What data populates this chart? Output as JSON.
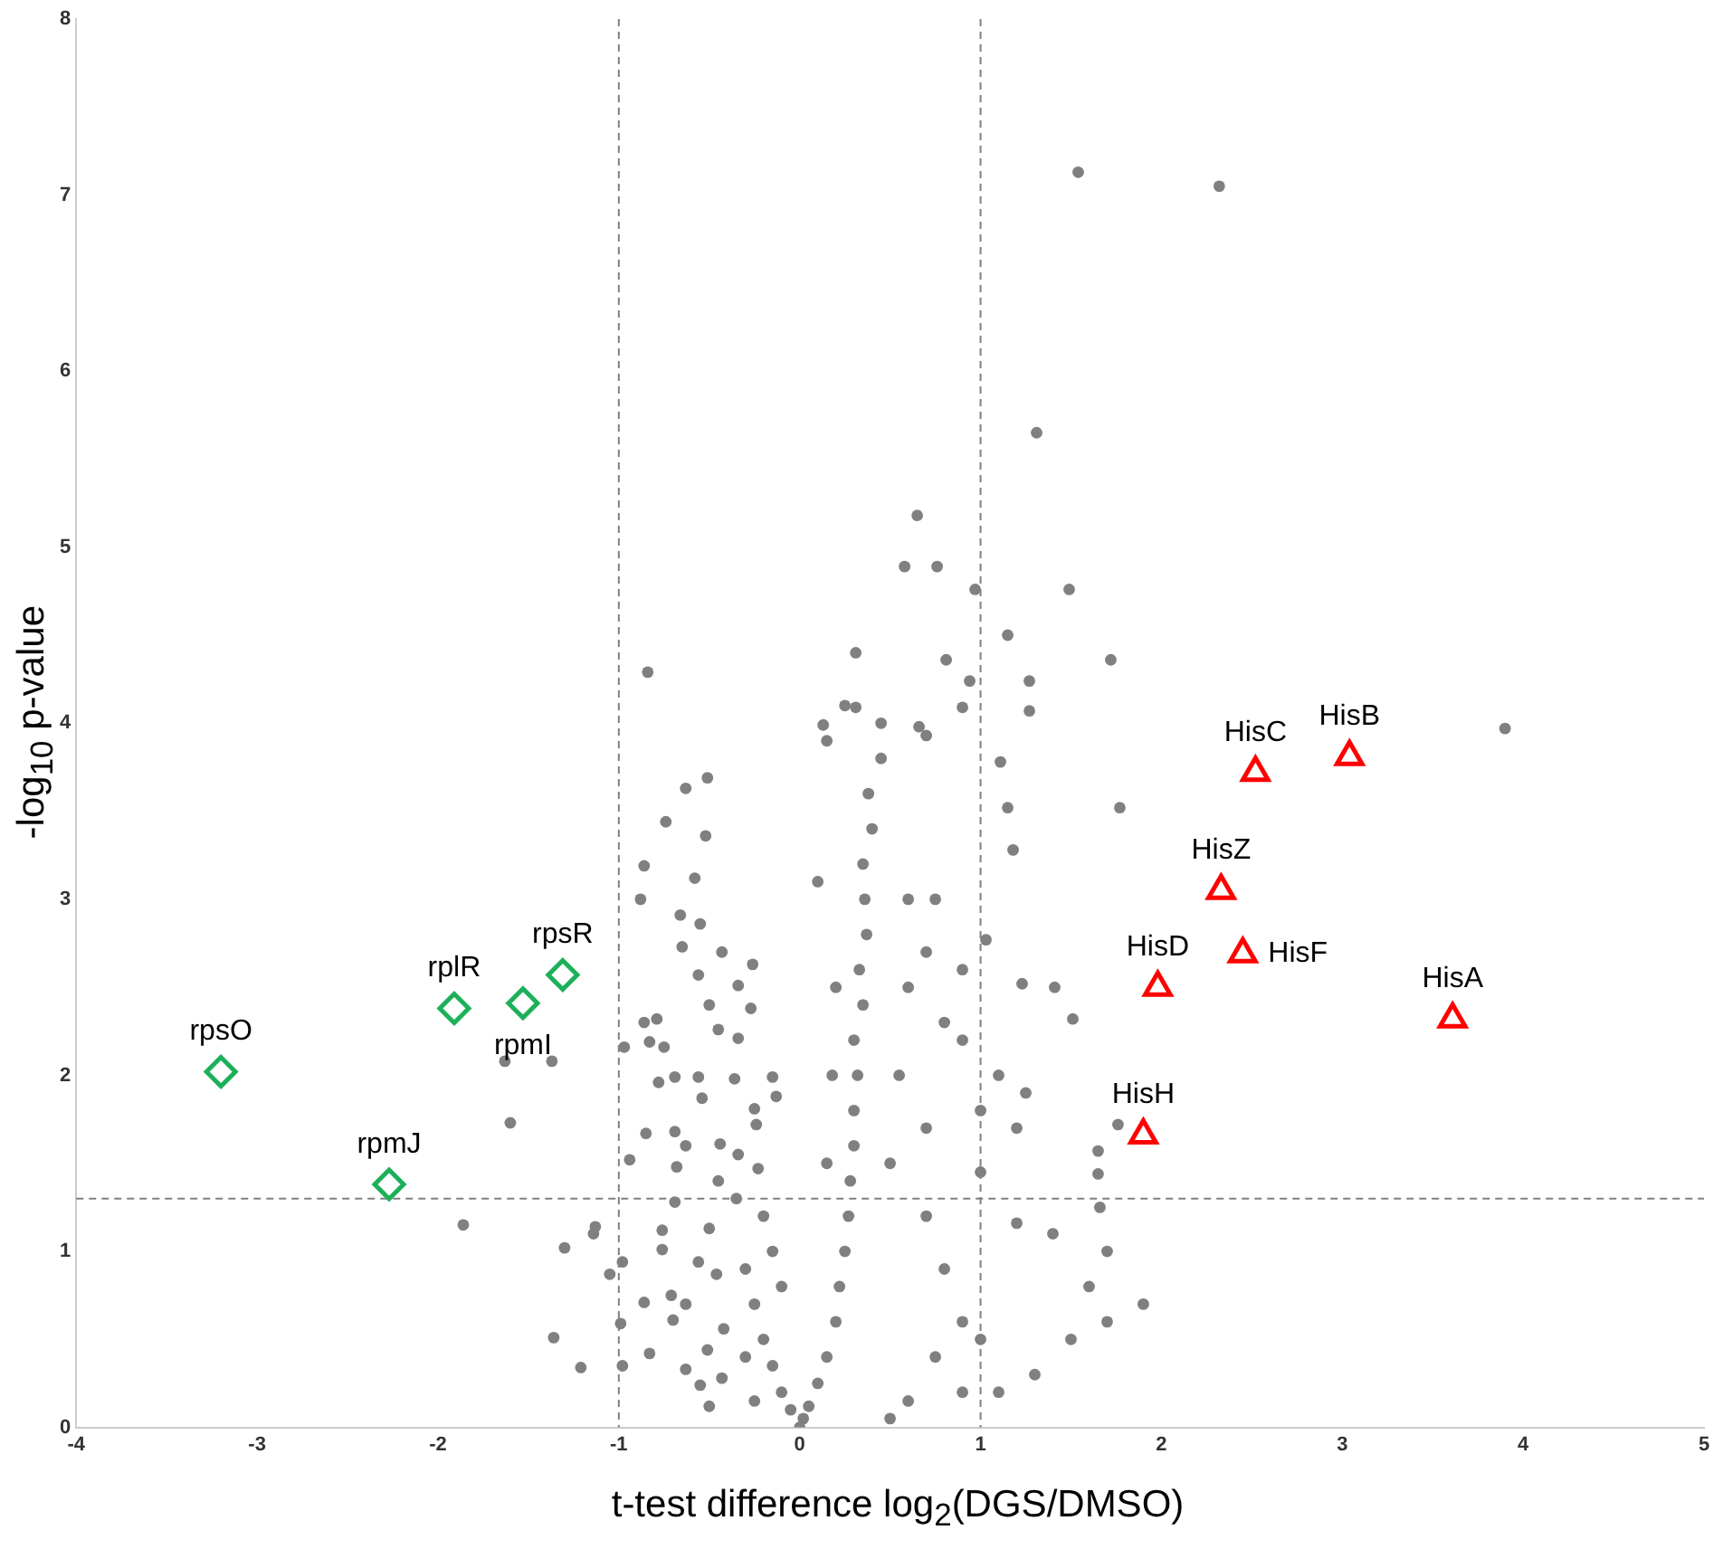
{
  "chart_data": {
    "type": "scatter",
    "xlabel": "t-test difference log$_{2}$(DGS/DMSO)",
    "ylabel": "-log$_{10}$ p-value",
    "xlim": [
      -4,
      5
    ],
    "ylim": [
      0,
      8
    ],
    "xticks": [
      -4,
      -3,
      -2,
      -1,
      0,
      1,
      2,
      3,
      4,
      5
    ],
    "yticks": [
      0,
      1,
      2,
      3,
      4,
      5,
      6,
      7,
      8
    ],
    "grid": false,
    "legend": false,
    "series": [
      {
        "color": "#808080",
        "marker": "circle",
        "x": [
          1.54,
          2.32,
          1.31,
          0.65,
          1.49,
          -0.84,
          0.58,
          0.76,
          0.97,
          0.31,
          1.15,
          0.81,
          1.72,
          1.27,
          0.94,
          1.27,
          0.9,
          0.31,
          0.13,
          0.66,
          0.7,
          1.11,
          1.77,
          3.9,
          1.15,
          1.18,
          1.03,
          1.23,
          1.41,
          1.51,
          1.25,
          1.76,
          1.65,
          1.65,
          1.2,
          -0.51,
          -0.63,
          -0.74,
          -0.52,
          -0.86,
          -0.88,
          -0.58,
          -0.66,
          -0.55,
          -0.65,
          -0.43,
          -0.26,
          -0.56,
          -0.34,
          -0.5,
          -0.27,
          -0.86,
          -0.79,
          -0.97,
          -0.83,
          -0.75,
          -0.45,
          -0.34,
          -1.63,
          -1.37,
          -1.6,
          -0.78,
          -0.69,
          -0.56,
          -0.36,
          -0.15,
          -0.13,
          -0.54,
          -0.25,
          -0.24,
          -0.85,
          -0.69,
          -0.63,
          -0.44,
          -0.34,
          -0.94,
          -0.68,
          -0.23,
          -0.45,
          -0.69,
          -1.86,
          -1.13,
          -1.14,
          -0.76,
          -0.5,
          -1.3,
          -0.76,
          -0.56,
          -0.98,
          -1.05,
          -0.46,
          -0.71,
          -0.63,
          -0.86,
          -0.99,
          -0.7,
          -0.42,
          -1.36,
          -0.83,
          -0.51,
          -1.21,
          -0.98,
          -0.63,
          -0.55,
          -0.43,
          -0.5,
          0,
          0.02,
          -0.05,
          0.05,
          -0.1,
          0.1,
          -0.15,
          0.15,
          -0.2,
          0.2,
          -0.25,
          0.22,
          0.25,
          0.27,
          0.28,
          0.3,
          0.3,
          0.32,
          0.3,
          0.35,
          0.33,
          0.37,
          0.36,
          0.35,
          0.4,
          0.38,
          0.45,
          0.15,
          0.18,
          0.2,
          0.1,
          0.5,
          0.55,
          0.6,
          0.6,
          0.7,
          0.8,
          0.9,
          0.75,
          1.0,
          0.9,
          0.6,
          0.5,
          1.4,
          1.6,
          1.7,
          1.9,
          1.5,
          1.3,
          1.1,
          1.7,
          1.66,
          1.0,
          1.2,
          1.1,
          0.9,
          1.0,
          0.7,
          0.8,
          0.7,
          0.75,
          0.9,
          0.45,
          0.25,
          0.15,
          -0.3,
          -0.2,
          -0.15,
          -0.35,
          -0.1,
          -0.25,
          -0.3
        ],
        "values": [
          7.13,
          7.05,
          5.65,
          5.18,
          4.76,
          4.29,
          4.89,
          4.89,
          4.76,
          4.4,
          4.5,
          4.36,
          4.36,
          4.24,
          4.24,
          4.07,
          4.09,
          4.09,
          3.99,
          3.98,
          3.93,
          3.78,
          3.52,
          3.97,
          3.52,
          3.28,
          2.77,
          2.52,
          2.5,
          2.32,
          1.9,
          1.72,
          1.57,
          1.44,
          1.16,
          3.69,
          3.63,
          3.44,
          3.36,
          3.19,
          3.0,
          3.12,
          2.91,
          2.86,
          2.73,
          2.7,
          2.63,
          2.57,
          2.51,
          2.4,
          2.38,
          2.3,
          2.32,
          2.16,
          2.19,
          2.16,
          2.26,
          2.21,
          2.08,
          2.08,
          1.73,
          1.96,
          1.99,
          1.99,
          1.98,
          1.99,
          1.88,
          1.87,
          1.81,
          1.72,
          1.67,
          1.68,
          1.6,
          1.61,
          1.55,
          1.52,
          1.48,
          1.47,
          1.4,
          1.28,
          1.15,
          1.14,
          1.1,
          1.12,
          1.13,
          1.02,
          1.01,
          0.94,
          0.94,
          0.87,
          0.87,
          0.75,
          0.7,
          0.71,
          0.59,
          0.61,
          0.56,
          0.51,
          0.42,
          0.44,
          0.34,
          0.35,
          0.33,
          0.24,
          0.28,
          0.12,
          0.0,
          0.05,
          0.1,
          0.12,
          0.2,
          0.25,
          0.35,
          0.4,
          0.5,
          0.6,
          0.7,
          0.8,
          1.0,
          1.2,
          1.4,
          1.6,
          1.8,
          2.0,
          2.2,
          2.4,
          2.6,
          2.8,
          3.0,
          3.2,
          3.4,
          3.6,
          3.8,
          1.5,
          2.0,
          2.5,
          3.1,
          1.5,
          2.0,
          2.5,
          3.0,
          1.2,
          0.9,
          0.6,
          0.4,
          0.5,
          0.2,
          0.15,
          0.05,
          1.1,
          0.8,
          0.6,
          0.7,
          0.5,
          0.3,
          0.2,
          1.0,
          1.25,
          1.45,
          1.7,
          2.0,
          2.2,
          1.8,
          1.7,
          2.3,
          2.7,
          3.0,
          2.6,
          4.0,
          4.1,
          3.9,
          0.9,
          1.2,
          1.0,
          1.3,
          0.8,
          0.15,
          0.4
        ]
      },
      {
        "color": "#1db05a",
        "marker": "diamond",
        "x": [
          -3.2,
          -1.91,
          -1.53,
          -1.31,
          -2.27
        ],
        "values": [
          2.02,
          2.38,
          2.41,
          2.57,
          1.38
        ]
      },
      {
        "color": "#ff0000",
        "marker": "triangle",
        "x": [
          2.52,
          3.04,
          2.33,
          2.45,
          1.98,
          3.61,
          1.9
        ],
        "values": [
          3.72,
          3.81,
          3.05,
          2.69,
          2.5,
          2.32,
          1.66
        ]
      }
    ],
    "annotations": [
      {
        "text": "rpsO",
        "x": -3.2,
        "y": 2.02
      },
      {
        "text": "rplR",
        "x": -1.91,
        "y": 2.38
      },
      {
        "text": "rpmI",
        "x": -1.53,
        "y": 2.41
      },
      {
        "text": "rpsR",
        "x": -1.31,
        "y": 2.57
      },
      {
        "text": "rpmJ",
        "x": -2.27,
        "y": 1.38
      },
      {
        "text": "HisC",
        "x": 2.52,
        "y": 3.72
      },
      {
        "text": "HisB",
        "x": 3.04,
        "y": 3.81
      },
      {
        "text": "HisZ",
        "x": 2.33,
        "y": 3.05
      },
      {
        "text": "HisF",
        "x": 2.45,
        "y": 2.69
      },
      {
        "text": "HisD",
        "x": 1.98,
        "y": 2.5
      },
      {
        "text": "HisA",
        "x": 3.61,
        "y": 2.32
      },
      {
        "text": "HisH",
        "x": 1.9,
        "y": 1.66
      }
    ],
    "ref_lines": [
      {
        "axis": "x",
        "value": -1,
        "color": "#808080",
        "line_style": "dashed"
      },
      {
        "axis": "x",
        "value": 1,
        "color": "#808080",
        "line_style": "dashed"
      },
      {
        "axis": "y",
        "value": 1.3,
        "color": "#808080",
        "line_style": "dashed"
      }
    ]
  }
}
